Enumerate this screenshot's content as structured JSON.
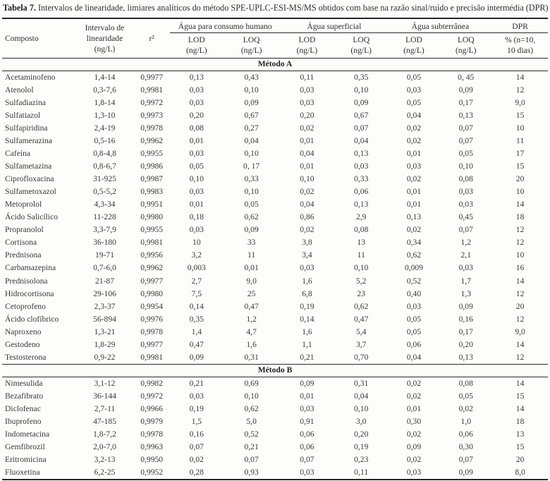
{
  "document": {
    "caption_label": "Tabela 7.",
    "caption_text": "Intervalos de linearidade, limiares analíticos do método SPE-UPLC-ESI-MS/MS obtidos com base na razão sinal/ruído e precisão intermédia (DPR)"
  },
  "colors": {
    "text": "#383838",
    "rule": "#2b2b2b",
    "background": "#fdfdfc"
  },
  "table": {
    "header": {
      "composto": "Composto",
      "intervalo": "Intervalo de\nlinearidade\n(ng/L)",
      "r2": "r²",
      "groups": [
        "Água para consumo humano",
        "Água superficial",
        "Água subterrânea",
        "DPR"
      ],
      "sub": [
        "LOD\n(ng/L)",
        "LOQ\n(ng/L)",
        "LOD\n(ng/L)",
        "LOQ\n(ng/L)",
        "LOD\n(ng/L)",
        "LOQ\n(ng/L)",
        "% (n=10,\n10 dias)"
      ]
    },
    "sections": [
      {
        "label": "Método A",
        "rows": [
          [
            "Acetaminofeno",
            "1,4-14",
            "0,9977",
            "0,13",
            "0,43",
            "0,11",
            "0,35",
            "0,05",
            "0, 45",
            "14"
          ],
          [
            "Atenolol",
            "0,3-7,6",
            "0,9981",
            "0,03",
            "0,10",
            "0,03",
            "0,10",
            "0,03",
            "0,09",
            "12"
          ],
          [
            "Sulfadiazina",
            "1,8-14",
            "0,9972",
            "0,03",
            "0,09",
            "0,03",
            "0,09",
            "0,05",
            "0,17",
            "9,0"
          ],
          [
            "Sulfatiazol",
            "1,3-10",
            "0,9973",
            "0,20",
            "0,67",
            "0,20",
            "0,67",
            "0,04",
            "0,13",
            "15"
          ],
          [
            "Sulfapiridina",
            "2,4-19",
            "0,9978",
            "0,08",
            "0,27",
            "0,02",
            "0,07",
            "0,02",
            "0,07",
            "10"
          ],
          [
            "Sulfamerazina",
            "0,5-16",
            "0,9962",
            "0,01",
            "0,04",
            "0,01",
            "0,04",
            "0,02",
            "0,07",
            "11"
          ],
          [
            "Cafeína",
            "0,8-4,8",
            "0,9955",
            "0,03",
            "0,10",
            "0,04",
            "0,13",
            "0,01",
            "0,05",
            "17"
          ],
          [
            "Sulfametazina",
            "0,8-6,7",
            "0,9986",
            "0,05",
            "0, 17",
            "0,01",
            "0,03",
            "0,03",
            "0,10",
            "15"
          ],
          [
            "Ciprofloxacina",
            "31-925",
            "0,9987",
            "0,10",
            "0,33",
            "0,10",
            "0,33",
            "0,02",
            "0,08",
            "20"
          ],
          [
            "Sulfametoxazol",
            "0,5-5,2",
            "0,9983",
            "0,03",
            "0,10",
            "0,02",
            "0,06",
            "0,01",
            "0,03",
            "10"
          ],
          [
            "Metoprolol",
            "4,3-34",
            "0,9951",
            "0,01",
            "0,05",
            "0,04",
            "0,13",
            "0,01",
            "0,03",
            "14"
          ],
          [
            "Ácido Salicílico",
            "11-228",
            "0,9980",
            "0,18",
            "0,62",
            "0,86",
            "2,9",
            "0,13",
            "0,45",
            "18"
          ],
          [
            "Propranolol",
            "3,3-7,9",
            "0,9955",
            "0,03",
            "0,09",
            "0,02",
            "0,08",
            "0,02",
            "0,07",
            "12"
          ],
          [
            "Cortisona",
            "36-180",
            "0,9981",
            "10",
            "33",
            "3,8",
            "13",
            "0,34",
            "1,2",
            "12"
          ],
          [
            "Prednisona",
            "19-71",
            "0,9956",
            "3,2",
            "11",
            "3,4",
            "11",
            "0,62",
            "2,1",
            "10"
          ],
          [
            "Carbamazepina",
            "0,7-6,0",
            "0,9962",
            "0,003",
            "0,01",
            "0,03",
            "0,10",
            "0,009",
            "0,03",
            "16"
          ],
          [
            "Prednisolona",
            "21-87",
            "0,9977",
            "2,7",
            "9,0",
            "1,6",
            "5,2",
            "0,52",
            "1,7",
            "14"
          ],
          [
            "Hidrocortisona",
            "29-106",
            "0,9980",
            "7,5",
            "25",
            "6,8",
            "23",
            "0,40",
            "1,3",
            "12"
          ],
          [
            "Cetoprofeno",
            "2,3-37",
            "0,9954",
            "0,14",
            "0,47",
            "0,19",
            "0,62",
            "0,03",
            "0,09",
            "20"
          ],
          [
            "Ácido clofíbrico",
            "56-894",
            "0,9976",
            "0,35",
            "1,2",
            "0,14",
            "0,47",
            "0,05",
            "0,16",
            "12"
          ],
          [
            "Naproxeno",
            "1,3-21",
            "0,9978",
            "1,4",
            "4,7",
            "1,6",
            "5,4",
            "0,05",
            "0,17",
            "9,0"
          ],
          [
            "Gestodeno",
            "1,8-29",
            "0,9977",
            "0,47",
            "1,6",
            "1,1",
            "3,7",
            "0,06",
            "0,20",
            "14"
          ],
          [
            "Testosterona",
            "0,9-22",
            "0,9981",
            "0,09",
            "0,31",
            "0,21",
            "0,70",
            "0,04",
            "0,13",
            "12"
          ]
        ]
      },
      {
        "label": "Método B",
        "rows": [
          [
            "Nimesulida",
            "3,1-12",
            "0,9982",
            "0,21",
            "0,69",
            "0,09",
            "0,31",
            "0,02",
            "0,08",
            "14"
          ],
          [
            "Bezafibrato",
            "36-144",
            "0,9972",
            "0,03",
            "0,10",
            "0,01",
            "0,04",
            "0,02",
            "0,05",
            "15"
          ],
          [
            "Diclofenac",
            "2,7-11",
            "0,9966",
            "0,19",
            "0,62",
            "0,03",
            "0,10",
            "0,01",
            "0,02",
            "14"
          ],
          [
            "Ibuprofeno",
            "47-185",
            "0,9979",
            "1,5",
            "5,0",
            "0,91",
            "3,0",
            "0,30",
            "1,0",
            "18"
          ],
          [
            "Indometacina",
            "1,8-7,2",
            "0,9978",
            "0,16",
            "0,52",
            "0,06",
            "0,20",
            "0,02",
            "0,06",
            "13"
          ],
          [
            "Gemfibrozil",
            "2,0-7,0",
            "0,9963",
            "0,07",
            "0,21",
            "0,06",
            "0,19",
            "0,09",
            "0,30",
            "15"
          ],
          [
            "Eritromicina",
            "3,2-13",
            "0,9950",
            "0,02",
            "0,07",
            "0,07",
            "0,23",
            "0,02",
            "0,07",
            "20"
          ],
          [
            "Fluoxetina",
            "6,2-25",
            "0,9952",
            "0,28",
            "0,93",
            "0,03",
            "0,11",
            "0,03",
            "0,09",
            "8,0"
          ]
        ]
      }
    ]
  }
}
